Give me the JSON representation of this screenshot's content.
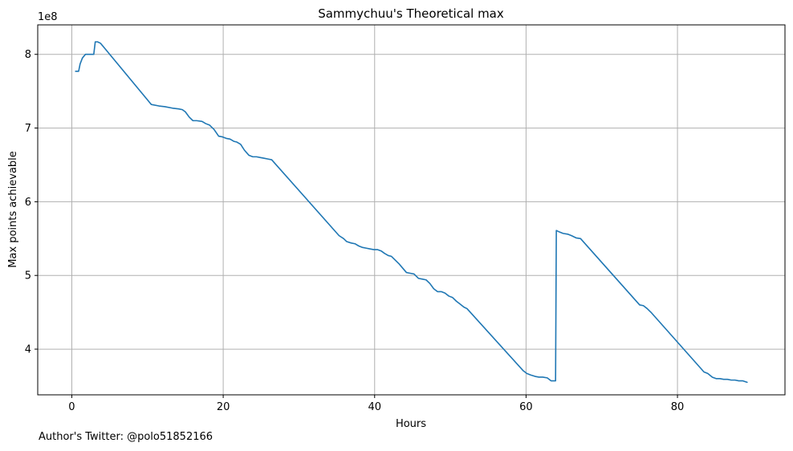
{
  "chart_data": {
    "type": "line",
    "title": "Sammychuu's Theoretical max",
    "xlabel": "Hours",
    "ylabel": "Max points achievable",
    "y_offset_label": "1e8",
    "xlim": [
      -4.5,
      94.2
    ],
    "ylim": [
      3.38,
      8.4
    ],
    "x_ticks": [
      0,
      20,
      40,
      60,
      80
    ],
    "x_tick_labels": [
      "0",
      "20",
      "40",
      "60",
      "80"
    ],
    "y_ticks": [
      4,
      5,
      6,
      7,
      8
    ],
    "y_tick_labels": [
      "4",
      "5",
      "6",
      "7",
      "8"
    ],
    "grid": true,
    "legend": "none",
    "series": [
      {
        "color": "#1f77b4",
        "x": [
          0.5,
          0.9,
          1.1,
          1.4,
          1.8,
          2.2,
          2.6,
          2.9,
          3.1,
          3.4,
          3.8,
          10.5,
          11.5,
          12.3,
          13.3,
          14.1,
          14.6,
          15.0,
          15.5,
          16.0,
          16.5,
          17.2,
          17.7,
          18.2,
          18.8,
          19.4,
          19.9,
          20.4,
          20.9,
          21.4,
          21.8,
          22.3,
          22.8,
          23.4,
          23.9,
          24.4,
          24.9,
          25.4,
          25.9,
          26.4,
          35.3,
          35.9,
          36.3,
          36.9,
          37.4,
          37.9,
          38.4,
          38.9,
          39.4,
          39.9,
          40.4,
          40.9,
          41.3,
          41.8,
          42.2,
          42.7,
          43.2,
          43.7,
          44.2,
          44.7,
          45.2,
          45.8,
          46.3,
          46.8,
          47.3,
          47.8,
          48.3,
          48.8,
          49.3,
          49.8,
          50.3,
          50.8,
          51.3,
          51.8,
          52.2,
          59.6,
          60.1,
          60.6,
          61.2,
          61.7,
          62.2,
          62.8,
          63.3,
          63.9,
          64.0,
          64.4,
          64.9,
          65.5,
          66.0,
          66.6,
          67.2,
          75.0,
          75.5,
          76.0,
          76.5,
          83.5,
          84.0,
          84.6,
          85.1,
          85.6,
          86.1,
          86.6,
          87.1,
          87.6,
          88.1,
          88.6,
          89.2
        ],
        "y": [
          7.77,
          7.77,
          7.87,
          7.95,
          8.0,
          8.0,
          8.0,
          8.0,
          8.17,
          8.17,
          8.15,
          7.32,
          7.3,
          7.29,
          7.27,
          7.26,
          7.25,
          7.22,
          7.15,
          7.1,
          7.1,
          7.09,
          7.06,
          7.04,
          6.98,
          6.89,
          6.88,
          6.86,
          6.85,
          6.82,
          6.81,
          6.78,
          6.7,
          6.63,
          6.61,
          6.61,
          6.6,
          6.59,
          6.58,
          6.57,
          5.54,
          5.5,
          5.46,
          5.44,
          5.43,
          5.4,
          5.38,
          5.37,
          5.36,
          5.35,
          5.35,
          5.33,
          5.3,
          5.27,
          5.26,
          5.21,
          5.16,
          5.1,
          5.04,
          5.03,
          5.02,
          4.96,
          4.95,
          4.94,
          4.89,
          4.82,
          4.78,
          4.78,
          4.76,
          4.72,
          4.7,
          4.65,
          4.61,
          4.57,
          4.55,
          3.71,
          3.67,
          3.65,
          3.63,
          3.62,
          3.62,
          3.61,
          3.57,
          3.57,
          5.61,
          5.59,
          5.57,
          5.56,
          5.54,
          5.51,
          5.5,
          4.6,
          4.59,
          4.55,
          4.5,
          3.69,
          3.67,
          3.62,
          3.6,
          3.6,
          3.59,
          3.59,
          3.58,
          3.58,
          3.57,
          3.57,
          3.55
        ]
      }
    ]
  },
  "footnote": "Author's Twitter: @polo51852166",
  "colors": {
    "line": "#1f77b4",
    "grid": "#b0b0b0",
    "axes": "#000000",
    "background": "#ffffff"
  }
}
